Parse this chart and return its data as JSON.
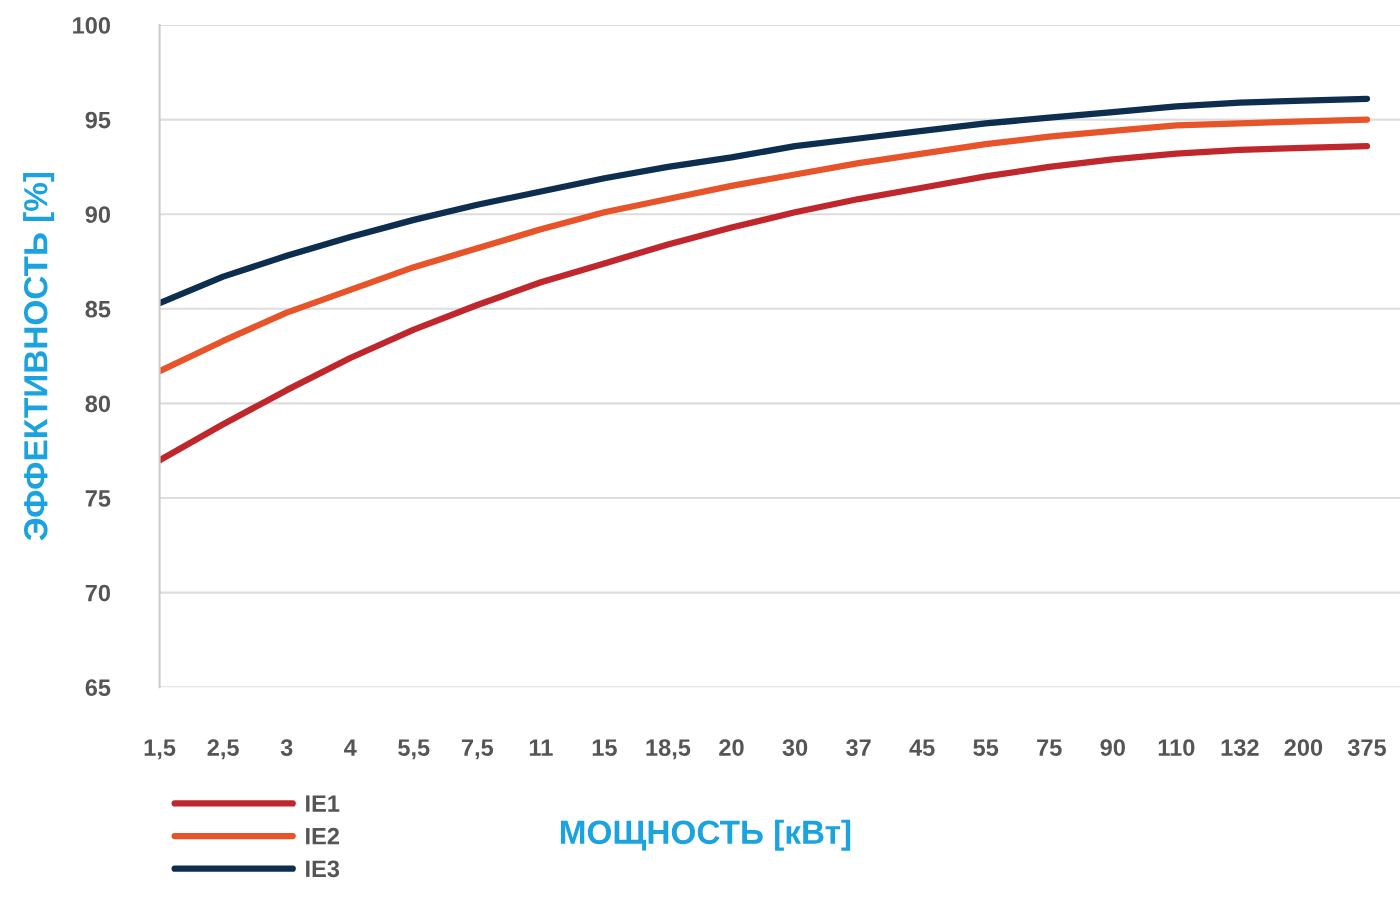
{
  "chart_data": {
    "type": "line",
    "xlabel": "МОЩНОСТЬ [кВт]",
    "ylabel": "ЭФФЕКТИВНОСТЬ [%]",
    "categories": [
      "1,5",
      "2,5",
      "3",
      "4",
      "5,5",
      "7,5",
      "11",
      "15",
      "18,5",
      "20",
      "30",
      "37",
      "45",
      "55",
      "75",
      "90",
      "110",
      "132",
      "200",
      "375"
    ],
    "series": [
      {
        "name": "IE1",
        "color": "#c0272d",
        "values": [
          77.0,
          78.9,
          80.7,
          82.4,
          83.9,
          85.2,
          86.4,
          87.4,
          88.4,
          89.3,
          90.1,
          90.8,
          91.4,
          92.0,
          92.5,
          92.9,
          93.2,
          93.4,
          93.5,
          93.6
        ]
      },
      {
        "name": "IE2",
        "color": "#e8542a",
        "values": [
          81.7,
          83.3,
          84.8,
          86.0,
          87.2,
          88.2,
          89.2,
          90.1,
          90.8,
          91.5,
          92.1,
          92.7,
          93.2,
          93.7,
          94.1,
          94.4,
          94.7,
          94.8,
          94.9,
          95.0
        ]
      },
      {
        "name": "IE3",
        "color": "#0d2e4f",
        "values": [
          85.3,
          86.7,
          87.8,
          88.8,
          89.7,
          90.5,
          91.2,
          91.9,
          92.5,
          93.0,
          93.6,
          94.0,
          94.4,
          94.8,
          95.1,
          95.4,
          95.7,
          95.9,
          96.0,
          96.1
        ]
      }
    ],
    "ylim": [
      65,
      100
    ],
    "yticks": [
      65,
      70,
      75,
      80,
      85,
      90,
      95,
      100
    ],
    "grid": "y",
    "legend": "bottom left",
    "line_style": "solid",
    "marker": "none"
  }
}
